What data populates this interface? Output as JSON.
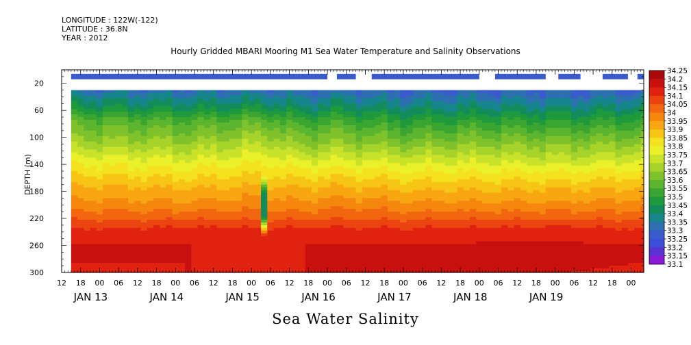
{
  "header": {
    "longitude": "LONGITUDE : 122W(-122)",
    "latitude": "LATITUDE : 36.8N",
    "year": "YEAR : 2012"
  },
  "chart_data": {
    "type": "heatmap",
    "title": "Hourly Gridded MBARI Mooring M1 Sea Water Temperature and Salinity Observations",
    "bottom_title": "Sea Water Salinity",
    "ylabel": "DEPTH (m)",
    "y_reversed": true,
    "ylim": [
      300,
      0
    ],
    "y_ticks": [
      20,
      60,
      100,
      140,
      180,
      220,
      260,
      300
    ],
    "x_hour_ticks": [
      "12",
      "18",
      "00",
      "06",
      "12",
      "18",
      "00",
      "06",
      "12",
      "18",
      "00",
      "06",
      "12",
      "18",
      "00",
      "06",
      "12",
      "18",
      "00",
      "06",
      "12",
      "18",
      "00",
      "06",
      "12",
      "18",
      "00",
      "06",
      "12",
      "18",
      "00"
    ],
    "x_day_labels": [
      "JAN 13",
      "JAN 14",
      "JAN 15",
      "JAN 16",
      "JAN 17",
      "JAN 18",
      "JAN 19"
    ],
    "x_start_hour_label": "12",
    "hours_total": 184,
    "data_start_hour": 3,
    "surface_bar": {
      "depth": 10,
      "value": 33.3,
      "segments": [
        [
          3,
          84
        ],
        [
          87,
          93
        ],
        [
          98,
          132
        ],
        [
          137,
          153
        ],
        [
          157,
          164
        ],
        [
          171,
          179
        ],
        [
          182,
          184
        ]
      ]
    },
    "data_top_depth": 30,
    "contour_levels": [
      33.1,
      33.15,
      33.2,
      33.25,
      33.3,
      33.35,
      33.4,
      33.45,
      33.5,
      33.55,
      33.6,
      33.65,
      33.7,
      33.75,
      33.8,
      33.85,
      33.9,
      33.95,
      34,
      34.05,
      34.1,
      34.15,
      34.2,
      34.25
    ],
    "colorbar_labels": [
      "34.25",
      "34.2",
      "34.15",
      "34.1",
      "34.05",
      "34",
      "33.95",
      "33.9",
      "33.85",
      "33.8",
      "33.75",
      "33.7",
      "33.65",
      "33.6",
      "33.55",
      "33.5",
      "33.45",
      "33.4",
      "33.35",
      "33.3",
      "33.25",
      "33.2",
      "33.15",
      "33.1"
    ],
    "colors": [
      "#e000e0",
      "#8a1ad6",
      "#5a32d2",
      "#3b4fd8",
      "#3a5bcc",
      "#2d6fb0",
      "#17858c",
      "#128c5a",
      "#1e9a3c",
      "#3aa531",
      "#5cb52e",
      "#80c22b",
      "#a6d32a",
      "#c9e22a",
      "#eaf02a",
      "#f4e21f",
      "#f7c516",
      "#f8a611",
      "#f5870f",
      "#f1660f",
      "#ec4410",
      "#e22211",
      "#c8100f",
      "#a80a0a"
    ],
    "profile": {
      "hours": [
        3,
        40,
        64,
        77,
        86,
        110,
        135,
        160,
        184
      ],
      "depths": [
        30,
        55,
        75,
        95,
        115,
        135,
        155,
        175,
        195,
        215,
        235,
        260,
        285,
        300
      ],
      "values": [
        [
          33.38,
          33.5,
          33.62,
          33.68,
          33.75,
          33.83,
          33.9,
          33.96,
          34.01,
          34.07,
          34.15,
          34.2,
          34.2,
          34.19
        ],
        [
          33.36,
          33.48,
          33.6,
          33.66,
          33.73,
          33.81,
          33.88,
          33.95,
          34.0,
          34.07,
          34.16,
          34.2,
          34.2,
          34.2
        ],
        [
          33.37,
          33.5,
          33.62,
          33.7,
          33.77,
          33.84,
          33.9,
          33.96,
          34.02,
          34.07,
          34.15,
          34.19,
          34.19,
          34.19
        ],
        [
          33.35,
          33.45,
          33.56,
          33.64,
          33.71,
          33.8,
          33.88,
          33.95,
          34.0,
          34.07,
          34.16,
          34.2,
          34.2,
          34.2
        ],
        [
          33.36,
          33.48,
          33.58,
          33.66,
          33.73,
          33.81,
          33.89,
          33.96,
          34.02,
          34.08,
          34.16,
          34.2,
          34.2,
          34.2
        ],
        [
          33.34,
          33.44,
          33.54,
          33.62,
          33.7,
          33.79,
          33.87,
          33.94,
          34.0,
          34.07,
          34.15,
          34.2,
          34.2,
          34.2
        ],
        [
          33.34,
          33.45,
          33.55,
          33.64,
          33.71,
          33.79,
          33.87,
          33.94,
          34.0,
          34.07,
          34.16,
          34.21,
          34.21,
          34.2
        ],
        [
          33.33,
          33.44,
          33.54,
          33.62,
          33.7,
          33.78,
          33.87,
          33.94,
          34.0,
          34.07,
          34.16,
          34.21,
          34.21,
          34.2
        ],
        [
          33.34,
          33.46,
          33.56,
          33.65,
          33.72,
          33.8,
          33.88,
          33.95,
          34.01,
          34.07,
          34.15,
          34.2,
          34.2,
          34.19
        ]
      ]
    },
    "anomaly": {
      "hour": 64,
      "depth_min": 155,
      "depth_max": 245,
      "value": 33.45
    }
  }
}
